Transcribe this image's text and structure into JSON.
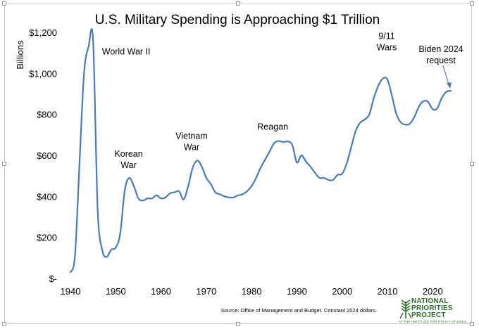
{
  "chart_data": {
    "type": "line",
    "title": "U.S. Military Spending is Approaching $1 Trillion",
    "ylabel": "Billions",
    "xlabel": "",
    "xlim": [
      1940,
      2024
    ],
    "ylim": [
      0,
      1200
    ],
    "x_ticks": [
      {
        "value": 1940,
        "label": "1940"
      },
      {
        "value": 1950,
        "label": "1950"
      },
      {
        "value": 1960,
        "label": "1960"
      },
      {
        "value": 1970,
        "label": "1970"
      },
      {
        "value": 1980,
        "label": "1980"
      },
      {
        "value": 1990,
        "label": "1990"
      },
      {
        "value": 2000,
        "label": "2000"
      },
      {
        "value": 2010,
        "label": "2010"
      },
      {
        "value": 2020,
        "label": "2020"
      }
    ],
    "y_ticks": [
      {
        "value": 0,
        "label": "$-"
      },
      {
        "value": 200,
        "label": "$200"
      },
      {
        "value": 400,
        "label": "$400"
      },
      {
        "value": 600,
        "label": "$600"
      },
      {
        "value": 800,
        "label": "$800"
      },
      {
        "value": 1000,
        "label": "$1,000"
      },
      {
        "value": 1200,
        "label": "$1,200"
      }
    ],
    "grid": false,
    "line_color": "#4a7ab8",
    "series": [
      {
        "name": "",
        "x": [
          1940,
          1941,
          1942,
          1943,
          1944,
          1945,
          1946,
          1947,
          1948,
          1949,
          1950,
          1951,
          1952,
          1953,
          1954,
          1955,
          1956,
          1957,
          1958,
          1959,
          1960,
          1961,
          1962,
          1963,
          1964,
          1965,
          1966,
          1967,
          1968,
          1969,
          1970,
          1971,
          1972,
          1973,
          1974,
          1975,
          1976,
          1977,
          1978,
          1979,
          1980,
          1981,
          1982,
          1983,
          1984,
          1985,
          1986,
          1987,
          1988,
          1989,
          1990,
          1991,
          1992,
          1993,
          1994,
          1995,
          1996,
          1997,
          1998,
          1999,
          2000,
          2001,
          2002,
          2003,
          2004,
          2005,
          2006,
          2007,
          2008,
          2009,
          2010,
          2011,
          2012,
          2013,
          2014,
          2015,
          2016,
          2017,
          2018,
          2019,
          2020,
          2021,
          2022,
          2023,
          2024
        ],
        "values": [
          30,
          110,
          560,
          1000,
          1130,
          1160,
          340,
          140,
          105,
          140,
          150,
          220,
          430,
          490,
          450,
          390,
          380,
          390,
          390,
          405,
          390,
          395,
          415,
          420,
          425,
          385,
          450,
          540,
          575,
          545,
          490,
          460,
          420,
          410,
          400,
          395,
          395,
          405,
          410,
          425,
          450,
          490,
          540,
          580,
          620,
          660,
          670,
          665,
          668,
          650,
          565,
          600,
          570,
          545,
          515,
          490,
          490,
          480,
          480,
          505,
          510,
          560,
          640,
          720,
          760,
          775,
          800,
          880,
          940,
          975,
          970,
          890,
          800,
          760,
          750,
          755,
          790,
          840,
          865,
          860,
          825,
          830,
          880,
          910,
          915
        ]
      }
    ],
    "annotations": [
      {
        "lines": [
          "World War II"
        ],
        "x": 1945,
        "y": 1160
      },
      {
        "lines": [
          "Korean",
          "War"
        ],
        "x": 1953,
        "y": 490
      },
      {
        "lines": [
          "Vietnam",
          "War"
        ],
        "x": 1968,
        "y": 575
      },
      {
        "lines": [
          "Reagan"
        ],
        "x": 1987,
        "y": 670
      },
      {
        "lines": [
          "9/11",
          "Wars"
        ],
        "x": 2010,
        "y": 975
      },
      {
        "lines": [
          "Biden 2024",
          "request"
        ],
        "x": 2024,
        "y": 915
      }
    ],
    "source": "Source: Office of Management and Budget. Constant 2024 dollars."
  },
  "logo": {
    "name": "NATIONAL PRIORITIES PROJECT",
    "line1": "NATIONAL",
    "line2": "PRIORITIES",
    "line3": "PROJECT",
    "subtitle": "AT THE INSTITUTE FOR POLICY STUDIES",
    "color": "#2e6f2e"
  }
}
